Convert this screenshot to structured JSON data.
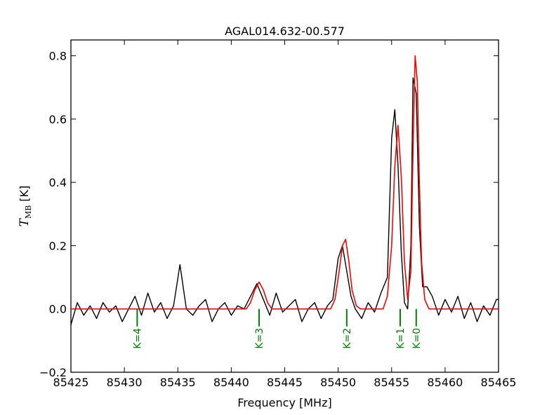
{
  "chart_data": {
    "type": "line",
    "title": "AGAL014.632-00.577",
    "xlabel": "Frequency [MHz]",
    "ylabel": {
      "symbol": "T",
      "subscript": "MB",
      "unit": " [K]"
    },
    "xlim": [
      85425,
      85465
    ],
    "ylim": [
      -0.2,
      0.85
    ],
    "xticks": [
      85425,
      85430,
      85435,
      85440,
      85445,
      85450,
      85455,
      85460,
      85465
    ],
    "yticks": [
      -0.2,
      0.0,
      0.2,
      0.4,
      0.6,
      0.8
    ],
    "ytick_labels": [
      "−0.2",
      "0.0",
      "0.2",
      "0.4",
      "0.6",
      "0.8"
    ],
    "colors": {
      "observed": "#000000",
      "fit": "#ff0000",
      "markers": "#008000"
    },
    "series": [
      {
        "style": "observed",
        "x": [
          85425.0,
          85425.6,
          85426.2,
          85426.8,
          85427.4,
          85428.0,
          85428.6,
          85429.2,
          85429.8,
          85430.4,
          85431.0,
          85431.6,
          85432.2,
          85432.8,
          85433.4,
          85434.0,
          85434.6,
          85435.2,
          85435.8,
          85436.4,
          85437.0,
          85437.6,
          85438.2,
          85438.8,
          85439.4,
          85440.0,
          85440.6,
          85441.2,
          85441.8,
          85442.4,
          85443.0,
          85443.6,
          85444.2,
          85444.8,
          85445.4,
          85446.0,
          85446.6,
          85447.2,
          85447.8,
          85448.4,
          85449.0,
          85449.5,
          85450.0,
          85450.4,
          85450.8,
          85451.2,
          85451.6,
          85452.2,
          85452.8,
          85453.4,
          85454.0,
          85454.6,
          85455.0,
          85455.3,
          85455.6,
          85455.9,
          85456.2,
          85456.5,
          85456.8,
          85457.0,
          85457.3,
          85457.6,
          85457.9,
          85458.3,
          85458.8,
          85459.4,
          85460.0,
          85460.6,
          85461.2,
          85461.8,
          85462.4,
          85463.0,
          85463.6,
          85464.2,
          85464.8,
          85465.0
        ],
        "y": [
          -0.05,
          0.02,
          -0.02,
          0.01,
          -0.03,
          0.02,
          -0.01,
          0.01,
          -0.04,
          0.0,
          0.04,
          -0.02,
          0.05,
          -0.01,
          0.02,
          -0.03,
          0.01,
          0.14,
          0.0,
          -0.02,
          0.01,
          0.03,
          -0.04,
          0.0,
          0.02,
          -0.02,
          0.01,
          0.0,
          0.04,
          0.08,
          0.03,
          -0.02,
          0.05,
          -0.01,
          0.01,
          0.03,
          -0.04,
          0.0,
          0.02,
          -0.03,
          0.01,
          0.03,
          0.16,
          0.2,
          0.12,
          0.04,
          0.0,
          -0.03,
          0.02,
          -0.01,
          0.05,
          0.1,
          0.54,
          0.63,
          0.45,
          0.18,
          0.02,
          0.0,
          0.2,
          0.73,
          0.68,
          0.26,
          0.07,
          0.07,
          0.04,
          -0.02,
          0.03,
          -0.01,
          0.04,
          -0.03,
          0.02,
          -0.04,
          0.01,
          -0.02,
          0.03,
          0.03
        ]
      },
      {
        "style": "fit",
        "x": [
          85425.0,
          85441.4,
          85441.8,
          85442.2,
          85442.6,
          85443.0,
          85443.4,
          85443.8,
          85449.3,
          85449.7,
          85450.1,
          85450.4,
          85450.7,
          85451.0,
          85451.3,
          85451.7,
          85452.1,
          85454.2,
          85454.6,
          85455.0,
          85455.3,
          85455.6,
          85455.9,
          85456.2,
          85456.5,
          85456.8,
          85457.0,
          85457.2,
          85457.4,
          85457.6,
          85457.8,
          85458.1,
          85458.5,
          85465.0
        ],
        "y": [
          0.0,
          0.0,
          0.02,
          0.06,
          0.085,
          0.06,
          0.02,
          0.0,
          0.0,
          0.03,
          0.12,
          0.2,
          0.22,
          0.15,
          0.06,
          0.01,
          0.0,
          0.0,
          0.04,
          0.2,
          0.45,
          0.58,
          0.42,
          0.15,
          0.03,
          0.12,
          0.5,
          0.8,
          0.72,
          0.4,
          0.15,
          0.03,
          0.0,
          0.0
        ]
      }
    ],
    "markers": [
      {
        "label": "K=4",
        "x": 85431.2
      },
      {
        "label": "K=3",
        "x": 85442.6
      },
      {
        "label": "K=2",
        "x": 85450.8
      },
      {
        "label": "K=1",
        "x": 85455.8
      },
      {
        "label": "K=0",
        "x": 85457.3
      }
    ]
  }
}
